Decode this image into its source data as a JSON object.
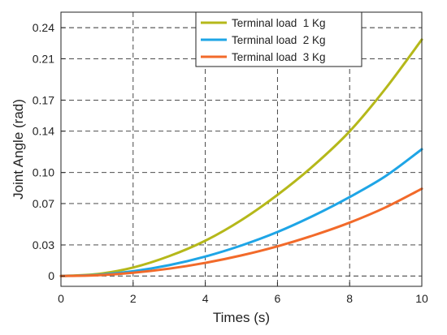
{
  "chart_data": {
    "type": "line",
    "title": "",
    "xlabel": "Times (s)",
    "ylabel": "Joint Angle (rad)",
    "xlim": [
      0,
      10
    ],
    "ylim": [
      -0.01,
      0.255
    ],
    "xticks": [
      0,
      2,
      4,
      6,
      8,
      10
    ],
    "xtick_labels": [
      "0",
      "2",
      "4",
      "6",
      "8",
      "10"
    ],
    "yticks": [
      0,
      0.03,
      0.07,
      0.1,
      0.14,
      0.17,
      0.21,
      0.24
    ],
    "ytick_labels": [
      "0",
      "0.03",
      "0.07",
      "0.10",
      "0.14",
      "0.17",
      "0.21",
      "0.24"
    ],
    "grid": true,
    "grid_style": "dashed",
    "legend_position": "top-right",
    "x": [
      0,
      1,
      2,
      3,
      4,
      5,
      6,
      7,
      8,
      9,
      10
    ],
    "series": [
      {
        "name": "Terminal load  1 Kg",
        "color": "#b5b81a",
        "values": [
          0,
          0.0019,
          0.0082,
          0.0192,
          0.0341,
          0.054,
          0.0784,
          0.1067,
          0.1398,
          0.1814,
          0.2285
        ]
      },
      {
        "name": "Terminal load  2 Kg",
        "color": "#1ea5e6",
        "values": [
          0,
          0.0011,
          0.0046,
          0.0105,
          0.0188,
          0.0295,
          0.0425,
          0.0583,
          0.0763,
          0.0966,
          0.1225
        ]
      },
      {
        "name": "Terminal load  3 Kg",
        "color": "#f26a2a",
        "values": [
          0,
          0.0007,
          0.0031,
          0.0071,
          0.0127,
          0.0199,
          0.0287,
          0.0393,
          0.0516,
          0.0664,
          0.0843
        ]
      }
    ]
  }
}
